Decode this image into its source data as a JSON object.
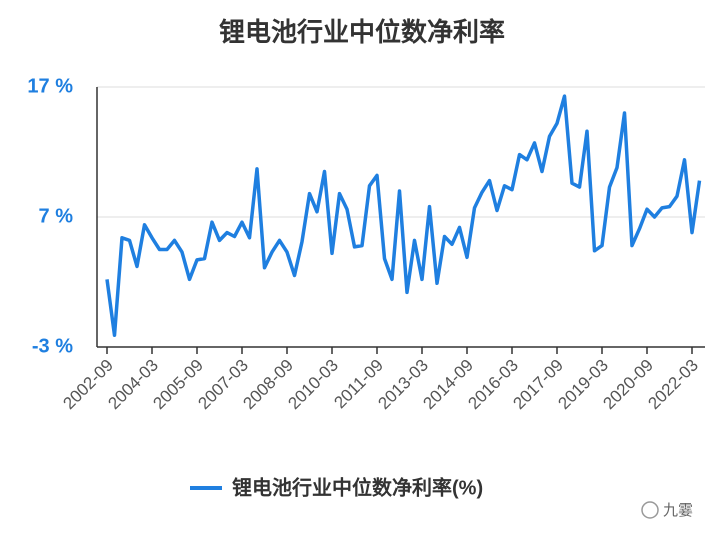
{
  "chart_data": {
    "type": "line",
    "title": "锂电池行业中位数净利率",
    "categories": [
      "2002-09",
      null,
      null,
      null,
      null,
      null,
      "2004-03",
      null,
      null,
      null,
      null,
      null,
      "2005-09",
      null,
      null,
      null,
      null,
      null,
      "2007-03",
      null,
      null,
      null,
      null,
      null,
      "2008-09",
      null,
      null,
      null,
      null,
      null,
      "2010-03",
      null,
      null,
      null,
      null,
      null,
      "2011-09",
      null,
      null,
      null,
      null,
      null,
      "2013-03",
      null,
      null,
      null,
      null,
      null,
      "2014-09",
      null,
      null,
      null,
      null,
      null,
      "2016-03",
      null,
      null,
      null,
      null,
      null,
      "2017-09",
      null,
      null,
      null,
      null,
      null,
      "2019-03",
      null,
      null,
      null,
      null,
      null,
      "2020-09",
      null,
      null,
      null,
      null,
      null,
      "2022-03",
      null
    ],
    "series": [
      {
        "name": "锂电池行业中位数净利率(%)",
        "color": "#1f7fe0",
        "values": [
          2.2,
          -2.1,
          5.4,
          5.2,
          3.2,
          6.4,
          5.4,
          4.5,
          4.5,
          5.2,
          4.3,
          2.2,
          3.7,
          3.8,
          6.6,
          5.2,
          5.8,
          5.5,
          6.6,
          5.4,
          10.7,
          3.1,
          4.3,
          5.2,
          4.3,
          2.5,
          5.1,
          8.8,
          7.4,
          10.5,
          4.2,
          8.8,
          7.6,
          4.7,
          4.8,
          9.4,
          10.2,
          3.8,
          2.2,
          9.0,
          1.2,
          5.2,
          2.2,
          7.8,
          1.9,
          5.5,
          4.9,
          6.2,
          3.9,
          7.7,
          8.9,
          9.8,
          7.5,
          9.4,
          9.1,
          11.8,
          11.4,
          12.7,
          10.5,
          13.2,
          14.2,
          16.3,
          9.6,
          9.3,
          13.6,
          4.4,
          4.8,
          9.3,
          10.8,
          15.0,
          4.8,
          6.1,
          7.6,
          7.0,
          7.7,
          7.8,
          8.6,
          11.4,
          5.8,
          9.8
        ]
      }
    ],
    "ylim": [
      -3,
      17
    ],
    "yticks": [
      {
        "value": -3,
        "label": "-3 %"
      },
      {
        "value": 7,
        "label": "7 %"
      },
      {
        "value": 17,
        "label": "17 %"
      }
    ],
    "grid": true,
    "legend": "bottom",
    "watermark": "九霎"
  }
}
